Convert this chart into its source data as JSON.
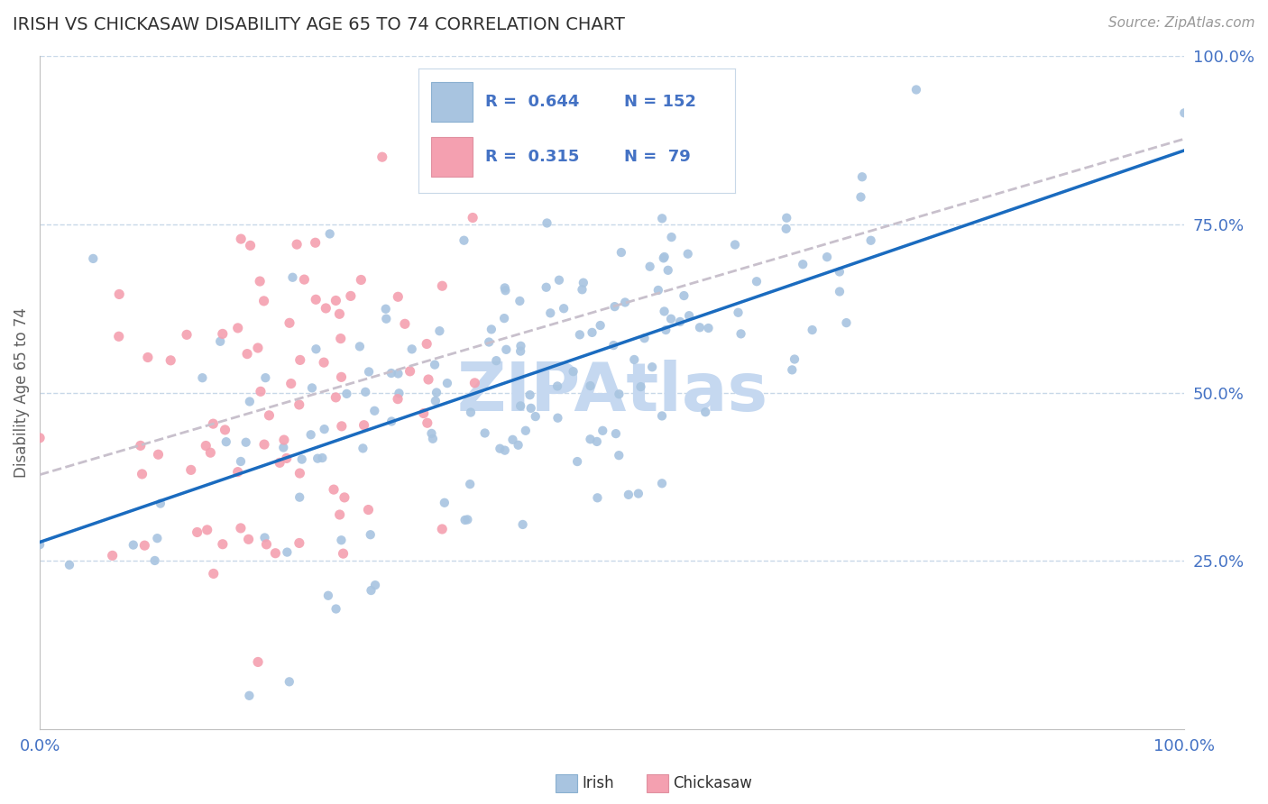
{
  "title": "IRISH VS CHICKASAW DISABILITY AGE 65 TO 74 CORRELATION CHART",
  "source_text": "Source: ZipAtlas.com",
  "ylabel": "Disability Age 65 to 74",
  "irish_R": 0.644,
  "irish_N": 152,
  "chickasaw_R": 0.315,
  "chickasaw_N": 79,
  "xlim": [
    0.0,
    1.0
  ],
  "ylim": [
    0.0,
    1.0
  ],
  "irish_color": "#a8c4e0",
  "irish_line_color": "#1a6bbf",
  "chickasaw_color": "#f4a0b0",
  "chickasaw_line_color": "#c8c0cc",
  "grid_color": "#c8d8e8",
  "watermark_color": "#c5d8f0",
  "background_color": "#ffffff",
  "title_color": "#303030",
  "tick_color": "#4472c4",
  "legend_text_color": "#4472c4"
}
